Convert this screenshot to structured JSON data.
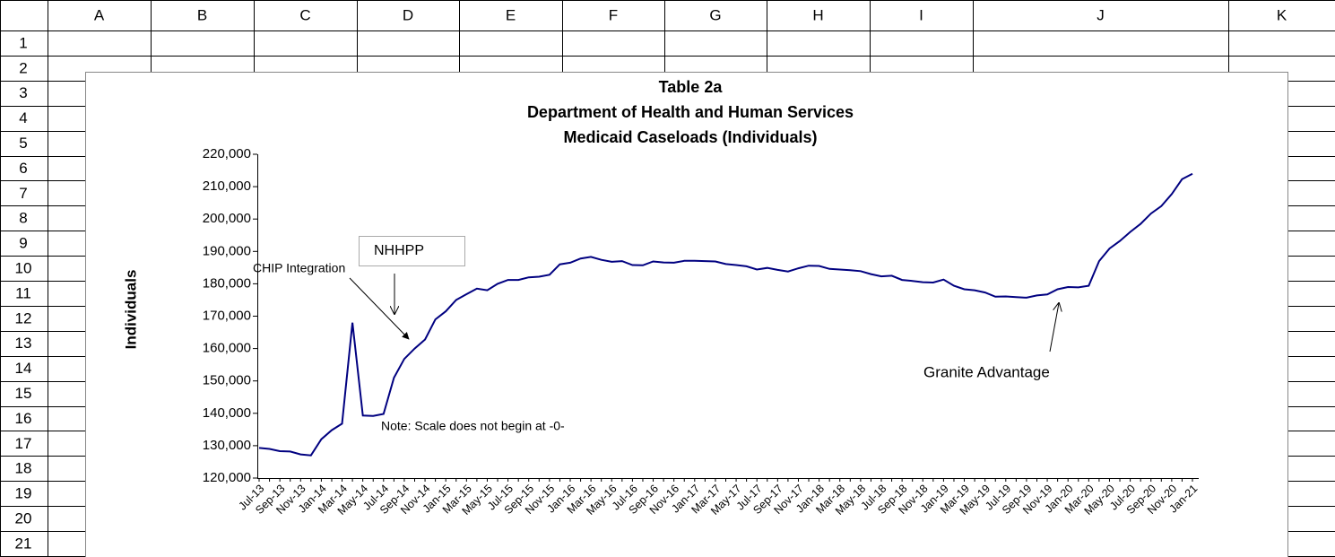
{
  "sheet": {
    "columns": [
      "A",
      "B",
      "C",
      "D",
      "E",
      "F",
      "G",
      "H",
      "I",
      "J",
      "K"
    ],
    "rows": [
      "1",
      "2",
      "3",
      "4",
      "5",
      "6",
      "7",
      "8",
      "9",
      "10",
      "11",
      "12",
      "13",
      "14",
      "15",
      "16",
      "17",
      "18",
      "19",
      "20",
      "21"
    ]
  },
  "chart_data": {
    "type": "line",
    "title": [
      "Table 2a",
      "Department of Health and Human Services",
      "Medicaid Caseloads  (Individuals)"
    ],
    "y_label": "Individuals",
    "color": "#000080",
    "categories": [
      "Jul-13",
      null,
      "Sep-13",
      null,
      "Nov-13",
      null,
      "Jan-14",
      null,
      "Mar-14",
      null,
      "May-14",
      null,
      "Jul-14",
      null,
      "Sep-14",
      null,
      "Nov-14",
      null,
      "Jan-15",
      null,
      "Mar-15",
      null,
      "May-15",
      null,
      "Jul-15",
      null,
      "Sep-15",
      null,
      "Nov-15",
      null,
      "Jan-16",
      null,
      "Mar-16",
      null,
      "May-16",
      null,
      "Jul-16",
      null,
      "Sep-16",
      null,
      "Nov-16",
      null,
      "Jan-17",
      null,
      "Mar-17",
      null,
      "May-17",
      null,
      "Jul-17",
      null,
      "Sep-17",
      null,
      "Nov-17",
      null,
      "Jan-18",
      null,
      "Mar-18",
      null,
      "May-18",
      null,
      "Jul-18",
      null,
      "Sep-18",
      null,
      "Nov-18",
      null,
      "Jan-19",
      null,
      "Mar-19",
      null,
      "May-19",
      null,
      "Jul-19",
      null,
      "Sep-19",
      null,
      "Nov-19",
      null,
      "Jan-20",
      null,
      "Mar-20",
      null,
      "May-20",
      null,
      "Jul-20",
      null,
      "Sep-20",
      null,
      "Nov-20",
      null,
      "Jan-21"
    ],
    "values": [
      129300,
      129000,
      128300,
      128200,
      127300,
      127000,
      132000,
      134800,
      136800,
      168000,
      139300,
      139200,
      139800,
      151000,
      156800,
      160000,
      162800,
      169000,
      171500,
      175000,
      176800,
      178500,
      178000,
      180000,
      181200,
      181200,
      182000,
      182200,
      182800,
      186000,
      186500,
      187800,
      188300,
      187400,
      186800,
      187000,
      185800,
      185700,
      186900,
      186600,
      186500,
      187100,
      187100,
      187000,
      186900,
      186100,
      185800,
      185400,
      184400,
      184900,
      184300,
      183800,
      184800,
      185600,
      185500,
      184600,
      184400,
      184200,
      183900,
      183000,
      182300,
      182500,
      181200,
      180900,
      180500,
      180400,
      181300,
      179400,
      178300,
      178000,
      177300,
      176000,
      176100,
      175900,
      175700,
      176400,
      176700,
      178300,
      179000,
      178900,
      179400,
      187000,
      190900,
      193200,
      196000,
      198500,
      201700,
      204000,
      207700,
      212300,
      214000
    ],
    "ylim": [
      120000,
      220000
    ],
    "yticks": [
      {
        "value": 120000,
        "label": "120,000"
      },
      {
        "value": 130000,
        "label": "130,000"
      },
      {
        "value": 140000,
        "label": "140,000"
      },
      {
        "value": 150000,
        "label": "150,000"
      },
      {
        "value": 160000,
        "label": "160,000"
      },
      {
        "value": 170000,
        "label": "170,000"
      },
      {
        "value": 180000,
        "label": "180,000"
      },
      {
        "value": 190000,
        "label": "190,000"
      },
      {
        "value": 200000,
        "label": "200,000"
      },
      {
        "value": 210000,
        "label": "210,000"
      },
      {
        "value": 220000,
        "label": "220,000"
      }
    ],
    "grid": false,
    "annotations": [
      "NHHPP",
      "CHIP Integration",
      "Note:  Scale does not begin at -0-",
      "Granite Advantage"
    ]
  }
}
